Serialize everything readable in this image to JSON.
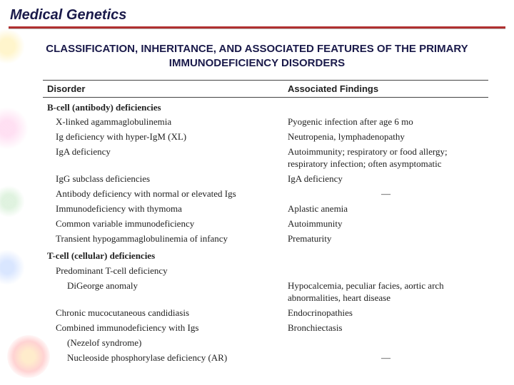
{
  "page_title": "Medical Genetics",
  "sub_heading": "CLASSIFICATION, INHERITANCE, AND ASSOCIATED FEATURES OF THE PRIMARY IMMUNODEFICIENCY DISORDERS",
  "colors": {
    "heading_text": "#1a1a4a",
    "rule": "#b03030",
    "body_text": "#222222",
    "background": "#ffffff"
  },
  "fontsizes": {
    "title": 20,
    "subheading": 15,
    "body": 13
  },
  "table": {
    "columns": [
      "Disorder",
      "Associated Findings"
    ],
    "col_widths_pct": [
      54,
      46
    ],
    "rows": [
      {
        "kind": "category",
        "disorder": "B-cell (antibody) deficiencies",
        "findings": ""
      },
      {
        "kind": "item",
        "indent": 1,
        "disorder": "X-linked agammaglobulinemia",
        "findings": "Pyogenic infection after age 6 mo"
      },
      {
        "kind": "item",
        "indent": 1,
        "disorder": "Ig deficiency with hyper-IgM (XL)",
        "findings": "Neutropenia, lymphadenopathy"
      },
      {
        "kind": "item",
        "indent": 1,
        "disorder": "IgA deficiency",
        "findings": "Autoimmunity; respiratory or food allergy; respiratory infection; often asymptomatic"
      },
      {
        "kind": "item",
        "indent": 1,
        "disorder": "IgG subclass deficiencies",
        "findings": "IgA deficiency"
      },
      {
        "kind": "item",
        "indent": 1,
        "disorder": "Antibody deficiency with normal or elevated Igs",
        "findings": "—",
        "dash": true
      },
      {
        "kind": "item",
        "indent": 1,
        "disorder": "Immunodeficiency with thymoma",
        "findings": "Aplastic anemia"
      },
      {
        "kind": "item",
        "indent": 1,
        "disorder": "Common variable immunodeficiency",
        "findings": "Autoimmunity"
      },
      {
        "kind": "item",
        "indent": 1,
        "disorder": "Transient hypogammaglobulinemia of infancy",
        "findings": "Prematurity"
      },
      {
        "kind": "category",
        "disorder": "T-cell (cellular) deficiencies",
        "findings": ""
      },
      {
        "kind": "item",
        "indent": 1,
        "disorder": "Predominant T-cell deficiency",
        "findings": ""
      },
      {
        "kind": "item",
        "indent": 2,
        "disorder": "DiGeorge anomaly",
        "findings": "Hypocalcemia, peculiar facies, aortic arch abnormalities, heart disease"
      },
      {
        "kind": "item",
        "indent": 1,
        "disorder": "Chronic mucocutaneous candidiasis",
        "findings": "Endocrinopathies"
      },
      {
        "kind": "item",
        "indent": 1,
        "disorder": "Combined immunodeficiency with Igs",
        "findings": "Bronchiectasis"
      },
      {
        "kind": "item",
        "indent": 2,
        "disorder": "(Nezelof syndrome)",
        "findings": ""
      },
      {
        "kind": "item",
        "indent": 2,
        "disorder": "Nucleoside phosphorylase deficiency (AR)",
        "findings": "—",
        "dash": true
      }
    ]
  }
}
